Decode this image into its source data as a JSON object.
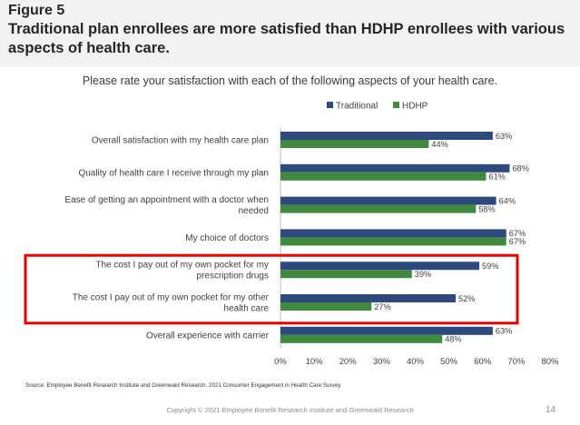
{
  "header": {
    "figure_label": "Figure 5",
    "title": "Traditional plan enrollees are more satisfied than HDHP enrollees with various aspects of health care."
  },
  "subtitle": "Please rate your satisfaction with each of the following aspects of your health care.",
  "colors": {
    "traditional": "#2e4a7d",
    "hdhp": "#3f8a3f",
    "highlight": "#e60000"
  },
  "chart_data": {
    "type": "bar",
    "orientation": "horizontal",
    "title": "Please rate your satisfaction with each of the following aspects of your health care.",
    "categories": [
      [
        "Overall satisfaction with my health care plan"
      ],
      [
        "Quality of health care I receive through my plan"
      ],
      [
        "Ease of getting an appointment with a doctor when",
        "needed"
      ],
      [
        "My choice of doctors"
      ],
      [
        "The cost I pay out of my own pocket for my",
        "prescription drugs"
      ],
      [
        "The cost I pay out of my own pocket for my other",
        "health care"
      ],
      [
        "Overall experience with carrier"
      ]
    ],
    "series": [
      {
        "name": "Traditional",
        "values": [
          63,
          68,
          64,
          67,
          59,
          52,
          63
        ],
        "labels": [
          "63%",
          "68%",
          "64%",
          "67%",
          "59%",
          "52%",
          "63%"
        ]
      },
      {
        "name": "HDHP",
        "values": [
          44,
          61,
          58,
          67,
          39,
          27,
          48
        ],
        "labels": [
          "44%",
          "61%",
          "58%",
          "67%",
          "39%",
          "27%",
          "48%"
        ]
      }
    ],
    "xlim": [
      0,
      80
    ],
    "xticks": [
      "0%",
      "10%",
      "20%",
      "30%",
      "40%",
      "50%",
      "60%",
      "70%",
      "80%"
    ],
    "legend_position": "top-right",
    "highlighted_categories": [
      4,
      5
    ]
  },
  "source": "Source:  Employee Benefit Research Institute and Greenwald Research. 2021 Consumer Engagement in Health Care Survey",
  "footer": {
    "copyright": "Copyright © 2021 Employee Benefit Research Institute and Greenwald Research",
    "page_number": "14"
  }
}
